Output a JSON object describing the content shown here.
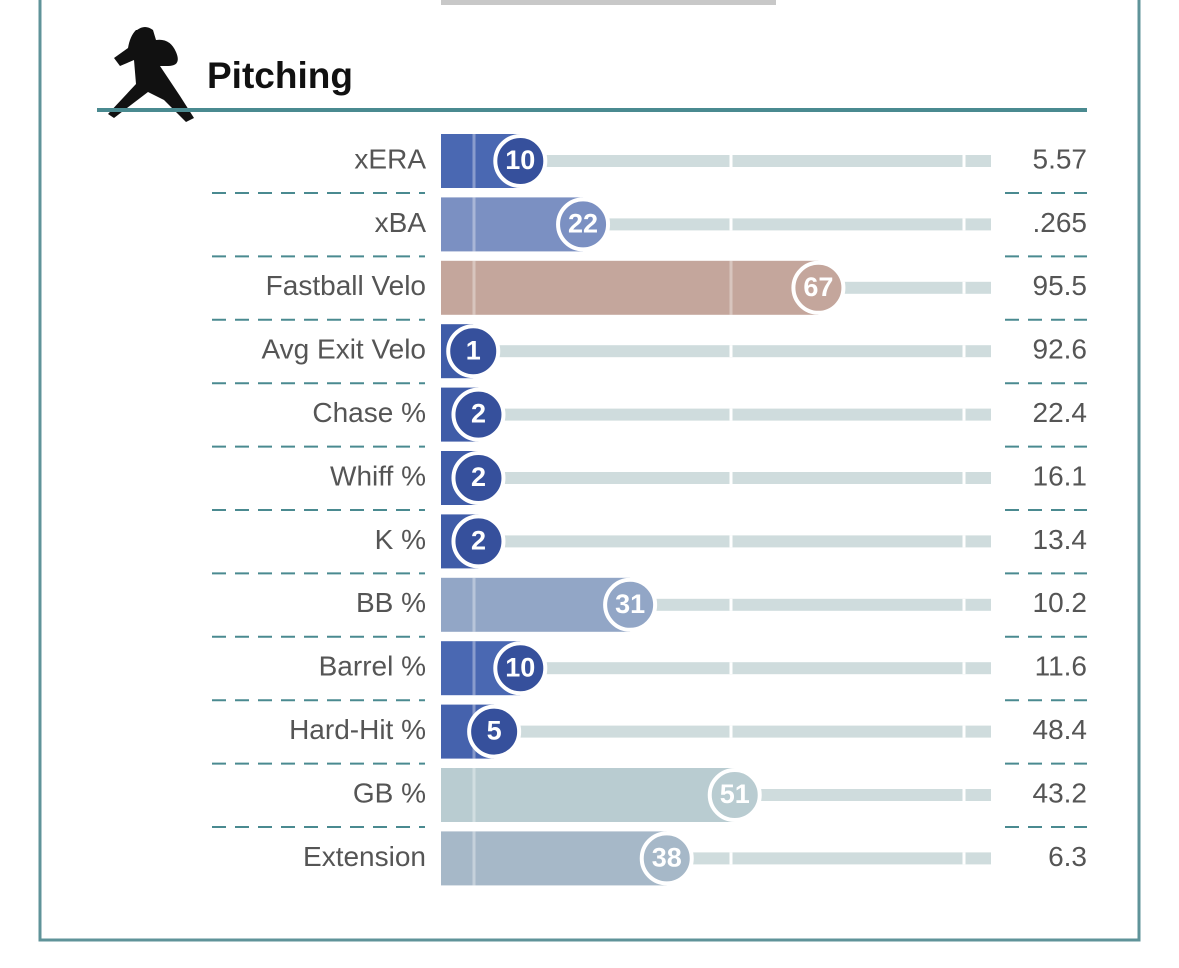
{
  "chart_data": {
    "type": "bar",
    "title": "Pitching",
    "categories": [
      "xERA",
      "xBA",
      "Fastball Velo",
      "Avg Exit Velo",
      "Chase %",
      "Whiff %",
      "K %",
      "BB %",
      "Barrel %",
      "Hard-Hit %",
      "GB %",
      "Extension"
    ],
    "values": [
      10,
      22,
      67,
      1,
      2,
      2,
      2,
      31,
      10,
      5,
      51,
      38
    ],
    "colors": [
      "#4a68b2",
      "#7b90c2",
      "#c4a69c",
      "#3f5ca8",
      "#3f5ca8",
      "#3f5ca8",
      "#3f5ca8",
      "#92a6c6",
      "#4a68b2",
      "#4562ad",
      "#b9ccd1",
      "#a6b8c8"
    ],
    "stats": [
      "5.57",
      ".265",
      "95.5",
      "92.6",
      "22.4",
      "16.1",
      "13.4",
      "10.2",
      "11.6",
      "48.4",
      "43.2",
      "6.3"
    ],
    "xlim": [
      0,
      100
    ]
  }
}
